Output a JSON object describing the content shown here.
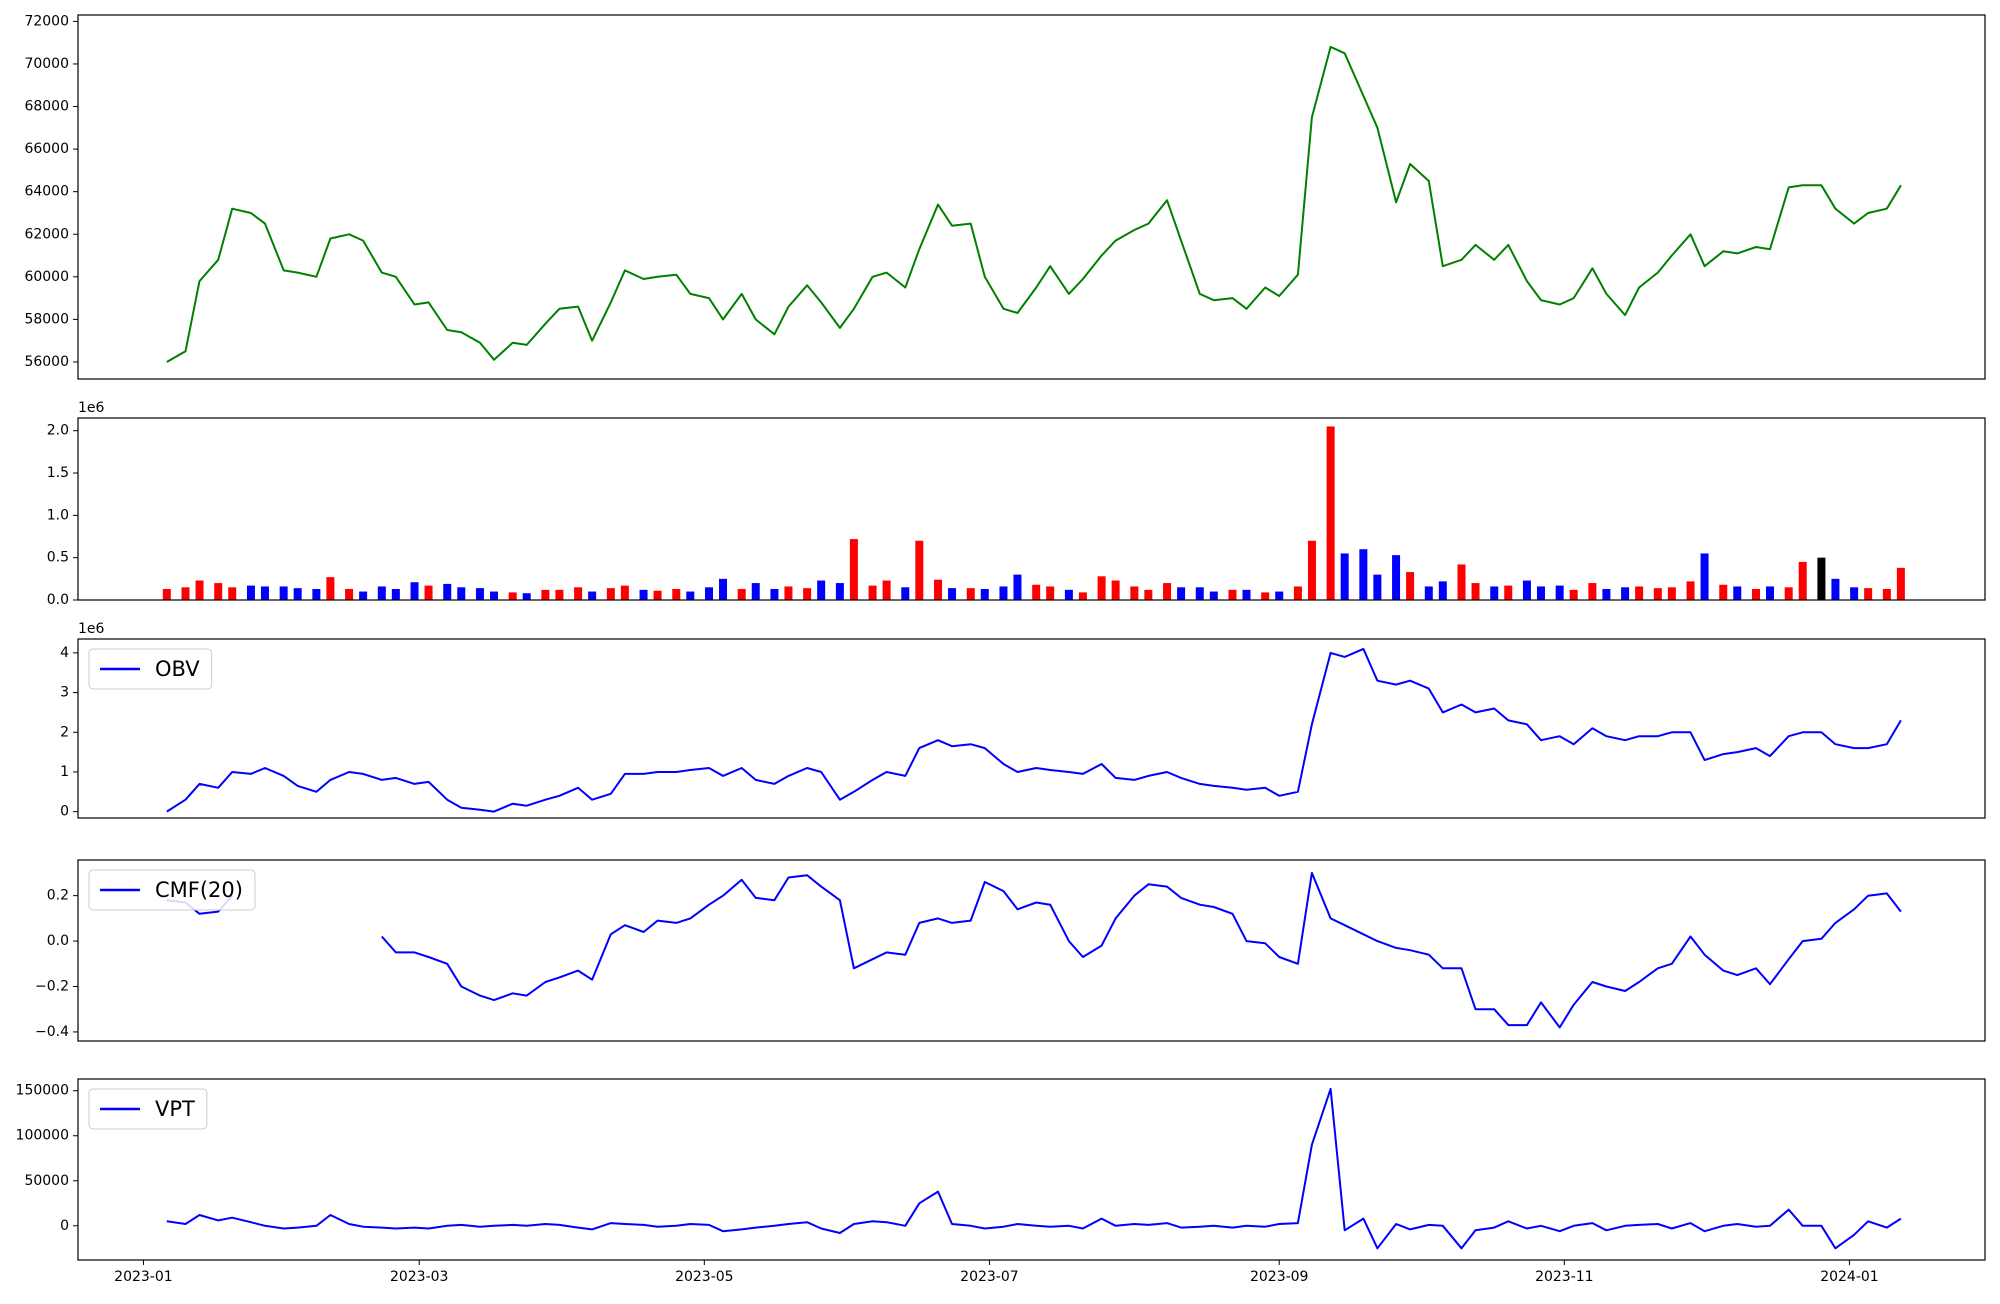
{
  "chart_data": {
    "type": "panels",
    "x": [
      "2023-01-06",
      "2023-01-10",
      "2023-01-13",
      "2023-01-17",
      "2023-01-20",
      "2023-01-24",
      "2023-01-27",
      "2023-01-31",
      "2023-02-03",
      "2023-02-07",
      "2023-02-10",
      "2023-02-14",
      "2023-02-17",
      "2023-02-21",
      "2023-02-24",
      "2023-02-28",
      "2023-03-03",
      "2023-03-07",
      "2023-03-10",
      "2023-03-14",
      "2023-03-17",
      "2023-03-21",
      "2023-03-24",
      "2023-03-28",
      "2023-03-31",
      "2023-04-04",
      "2023-04-07",
      "2023-04-11",
      "2023-04-14",
      "2023-04-18",
      "2023-04-21",
      "2023-04-25",
      "2023-04-28",
      "2023-05-02",
      "2023-05-05",
      "2023-05-09",
      "2023-05-12",
      "2023-05-16",
      "2023-05-19",
      "2023-05-23",
      "2023-05-26",
      "2023-05-30",
      "2023-06-02",
      "2023-06-06",
      "2023-06-09",
      "2023-06-13",
      "2023-06-16",
      "2023-06-20",
      "2023-06-23",
      "2023-06-27",
      "2023-06-30",
      "2023-07-04",
      "2023-07-07",
      "2023-07-11",
      "2023-07-14",
      "2023-07-18",
      "2023-07-21",
      "2023-07-25",
      "2023-07-28",
      "2023-08-01",
      "2023-08-04",
      "2023-08-08",
      "2023-08-11",
      "2023-08-15",
      "2023-08-18",
      "2023-08-22",
      "2023-08-25",
      "2023-08-29",
      "2023-09-01",
      "2023-09-05",
      "2023-09-08",
      "2023-09-12",
      "2023-09-15",
      "2023-09-19",
      "2023-09-22",
      "2023-09-26",
      "2023-09-29",
      "2023-10-03",
      "2023-10-06",
      "2023-10-10",
      "2023-10-13",
      "2023-10-17",
      "2023-10-20",
      "2023-10-24",
      "2023-10-27",
      "2023-10-31",
      "2023-11-03",
      "2023-11-07",
      "2023-11-10",
      "2023-11-14",
      "2023-11-17",
      "2023-11-21",
      "2023-11-24",
      "2023-11-28",
      "2023-12-01",
      "2023-12-05",
      "2023-12-08",
      "2023-12-12",
      "2023-12-15",
      "2023-12-19",
      "2023-12-22",
      "2023-12-26",
      "2023-12-29",
      "2024-01-02",
      "2024-01-05",
      "2024-01-09",
      "2024-01-12"
    ],
    "xlim": [
      "2022-12-18",
      "2024-01-30"
    ],
    "xticks": [
      {
        "value": "2023-01-01",
        "label": "2023-01"
      },
      {
        "value": "2023-03-01",
        "label": "2023-03"
      },
      {
        "value": "2023-05-01",
        "label": "2023-05"
      },
      {
        "value": "2023-07-01",
        "label": "2023-07"
      },
      {
        "value": "2023-09-01",
        "label": "2023-09"
      },
      {
        "value": "2023-11-01",
        "label": "2023-11"
      },
      {
        "value": "2024-01-01",
        "label": "2024-01"
      }
    ],
    "panels": [
      {
        "type": "line",
        "color": "green",
        "ylim": [
          55200,
          72300
        ],
        "yticks": [
          56000,
          58000,
          60000,
          62000,
          64000,
          66000,
          68000,
          70000,
          72000
        ],
        "values": [
          56000,
          56500,
          59800,
          60800,
          63200,
          63000,
          62500,
          60300,
          60200,
          60000,
          61800,
          62000,
          61700,
          60200,
          60000,
          58700,
          58800,
          57500,
          57400,
          56900,
          56100,
          56900,
          56800,
          57800,
          58500,
          58600,
          57000,
          58800,
          60300,
          59900,
          60000,
          60100,
          59200,
          59000,
          58000,
          59200,
          58000,
          57300,
          58600,
          59600,
          58800,
          57600,
          58500,
          60000,
          60200,
          59500,
          61300,
          63400,
          62400,
          62500,
          60000,
          58500,
          58300,
          59500,
          60500,
          59200,
          59900,
          61000,
          61700,
          62200,
          62500,
          63600,
          61700,
          59200,
          58900,
          59000,
          58500,
          59500,
          59100,
          60100,
          67500,
          70800,
          70500,
          68500,
          67000,
          63500,
          65300,
          64500,
          60500,
          60800,
          61500,
          60800,
          61500,
          59800,
          58900,
          58700,
          59000,
          60400,
          59200,
          58200,
          59500,
          60200,
          61000,
          62000,
          60500,
          61200,
          61100,
          61400,
          61300,
          64200,
          64300,
          64300,
          63200,
          62500,
          63000,
          63200,
          64300
        ]
      },
      {
        "type": "bar",
        "up_color": "red",
        "down_color": "blue",
        "flat_color": "black",
        "offset_label": "1e6",
        "ylim": [
          0,
          2150000
        ],
        "yticks": [
          {
            "value": 0,
            "label": "0.0"
          },
          {
            "value": 500000,
            "label": "0.5"
          },
          {
            "value": 1000000,
            "label": "1.0"
          },
          {
            "value": 1500000,
            "label": "1.5"
          },
          {
            "value": 2000000,
            "label": "2.0"
          }
        ],
        "values": [
          130000,
          150000,
          230000,
          200000,
          150000,
          170000,
          160000,
          160000,
          140000,
          130000,
          270000,
          130000,
          100000,
          160000,
          130000,
          210000,
          170000,
          190000,
          150000,
          140000,
          100000,
          90000,
          80000,
          120000,
          120000,
          150000,
          100000,
          140000,
          170000,
          120000,
          110000,
          130000,
          100000,
          150000,
          250000,
          130000,
          200000,
          130000,
          160000,
          140000,
          230000,
          200000,
          720000,
          170000,
          230000,
          150000,
          700000,
          240000,
          140000,
          140000,
          130000,
          160000,
          300000,
          180000,
          160000,
          120000,
          90000,
          280000,
          230000,
          160000,
          120000,
          200000,
          150000,
          150000,
          100000,
          120000,
          120000,
          90000,
          100000,
          160000,
          700000,
          2050000,
          550000,
          600000,
          300000,
          530000,
          330000,
          160000,
          220000,
          420000,
          200000,
          160000,
          170000,
          230000,
          160000,
          170000,
          120000,
          200000,
          130000,
          150000,
          160000,
          140000,
          150000,
          220000,
          550000,
          180000,
          160000,
          130000,
          160000,
          150000,
          450000,
          500000,
          250000,
          150000,
          140000,
          130000,
          380000
        ]
      },
      {
        "type": "line",
        "legend": "upper left",
        "offset_label": "1e6",
        "ylim": [
          -160000,
          4350000
        ],
        "yticks": [
          {
            "value": 0,
            "label": "0"
          },
          {
            "value": 1000000,
            "label": "1"
          },
          {
            "value": 2000000,
            "label": "2"
          },
          {
            "value": 3000000,
            "label": "3"
          },
          {
            "value": 4000000,
            "label": "4"
          }
        ],
        "series": [
          {
            "name": "OBV",
            "color": "blue",
            "values": [
              0,
              300000,
              700000,
              600000,
              1000000,
              950000,
              1100000,
              900000,
              650000,
              500000,
              800000,
              1000000,
              950000,
              800000,
              850000,
              700000,
              750000,
              300000,
              100000,
              50000,
              0,
              200000,
              150000,
              300000,
              400000,
              600000,
              300000,
              450000,
              950000,
              950000,
              1000000,
              1000000,
              1050000,
              1100000,
              900000,
              1100000,
              800000,
              700000,
              900000,
              1100000,
              1000000,
              300000,
              500000,
              800000,
              1000000,
              900000,
              1600000,
              1800000,
              1650000,
              1700000,
              1600000,
              1200000,
              1000000,
              1100000,
              1050000,
              1000000,
              950000,
              1200000,
              850000,
              800000,
              900000,
              1000000,
              850000,
              700000,
              650000,
              600000,
              550000,
              600000,
              400000,
              500000,
              2200000,
              4000000,
              3900000,
              4100000,
              3300000,
              3200000,
              3300000,
              3100000,
              2500000,
              2700000,
              2500000,
              2600000,
              2300000,
              2200000,
              1800000,
              1900000,
              1700000,
              2100000,
              1900000,
              1800000,
              1900000,
              1900000,
              2000000,
              2000000,
              1300000,
              1450000,
              1500000,
              1600000,
              1400000,
              1900000,
              2000000,
              2000000,
              1700000,
              1600000,
              1600000,
              1700000,
              2300000
            ]
          }
        ]
      },
      {
        "type": "line",
        "legend": "upper left",
        "ylim": [
          -0.44,
          0.357
        ],
        "yticks": [
          {
            "value": -0.4,
            "label": "−0.4"
          },
          {
            "value": -0.2,
            "label": "−0.2"
          },
          {
            "value": 0,
            "label": "0.0"
          },
          {
            "value": 0.2,
            "label": "0.2"
          }
        ],
        "series": [
          {
            "name": "CMF(20)",
            "color": "blue",
            "values": [
              0.18,
              0.17,
              0.12,
              0.13,
              0.2,
              null,
              null,
              null,
              null,
              null,
              null,
              null,
              null,
              0.02,
              -0.05,
              -0.05,
              -0.07,
              -0.1,
              -0.2,
              -0.24,
              -0.26,
              -0.23,
              -0.24,
              -0.18,
              -0.16,
              -0.13,
              -0.17,
              0.03,
              0.07,
              0.04,
              0.09,
              0.08,
              0.1,
              0.16,
              0.2,
              0.27,
              0.19,
              0.18,
              0.28,
              0.29,
              0.24,
              0.18,
              -0.12,
              -0.08,
              -0.05,
              -0.06,
              0.08,
              0.1,
              0.08,
              0.09,
              0.26,
              0.22,
              0.14,
              0.17,
              0.16,
              0.0,
              -0.07,
              -0.02,
              0.1,
              0.2,
              0.25,
              0.24,
              0.19,
              0.16,
              0.15,
              0.12,
              0.0,
              -0.01,
              -0.07,
              -0.1,
              0.3,
              0.1,
              0.07,
              0.03,
              0.0,
              -0.03,
              -0.04,
              -0.06,
              -0.12,
              -0.12,
              -0.3,
              -0.3,
              -0.37,
              -0.37,
              -0.27,
              -0.38,
              -0.28,
              -0.18,
              -0.2,
              -0.22,
              -0.18,
              -0.12,
              -0.1,
              0.02,
              -0.06,
              -0.13,
              -0.15,
              -0.12,
              -0.19,
              -0.08,
              0.0,
              0.01,
              0.08,
              0.14,
              0.2,
              0.21,
              0.13
            ]
          }
        ]
      },
      {
        "type": "line",
        "legend": "upper left",
        "ylim": [
          -38000,
          163000
        ],
        "yticks": [
          0,
          50000,
          100000,
          150000
        ],
        "series": [
          {
            "name": "VPT",
            "color": "blue",
            "values": [
              5000,
              2000,
              12000,
              6000,
              9000,
              4000,
              0,
              -3000,
              -2000,
              0,
              12000,
              2000,
              -1000,
              -2000,
              -3000,
              -2000,
              -3000,
              0,
              1000,
              -1000,
              0,
              1000,
              0,
              2000,
              1000,
              -2000,
              -4000,
              3000,
              2000,
              1000,
              -1000,
              0,
              2000,
              1000,
              -6000,
              -4000,
              -2000,
              0,
              2000,
              4000,
              -3000,
              -8000,
              2000,
              5000,
              4000,
              0,
              25000,
              38000,
              2000,
              0,
              -3000,
              -1000,
              2000,
              0,
              -1000,
              0,
              -3000,
              8000,
              0,
              2000,
              1000,
              3000,
              -2000,
              -1000,
              0,
              -2000,
              0,
              -1000,
              2000,
              3000,
              90000,
              152000,
              -5000,
              8000,
              -25000,
              2000,
              -4000,
              1000,
              0,
              -25000,
              -5000,
              -2000,
              5000,
              -3000,
              0,
              -6000,
              0,
              3000,
              -5000,
              0,
              1000,
              2000,
              -3000,
              3000,
              -6000,
              0,
              2000,
              -1000,
              0,
              18000,
              0,
              0,
              -25000,
              -10000,
              5000,
              -2000,
              8000
            ]
          }
        ]
      }
    ]
  }
}
